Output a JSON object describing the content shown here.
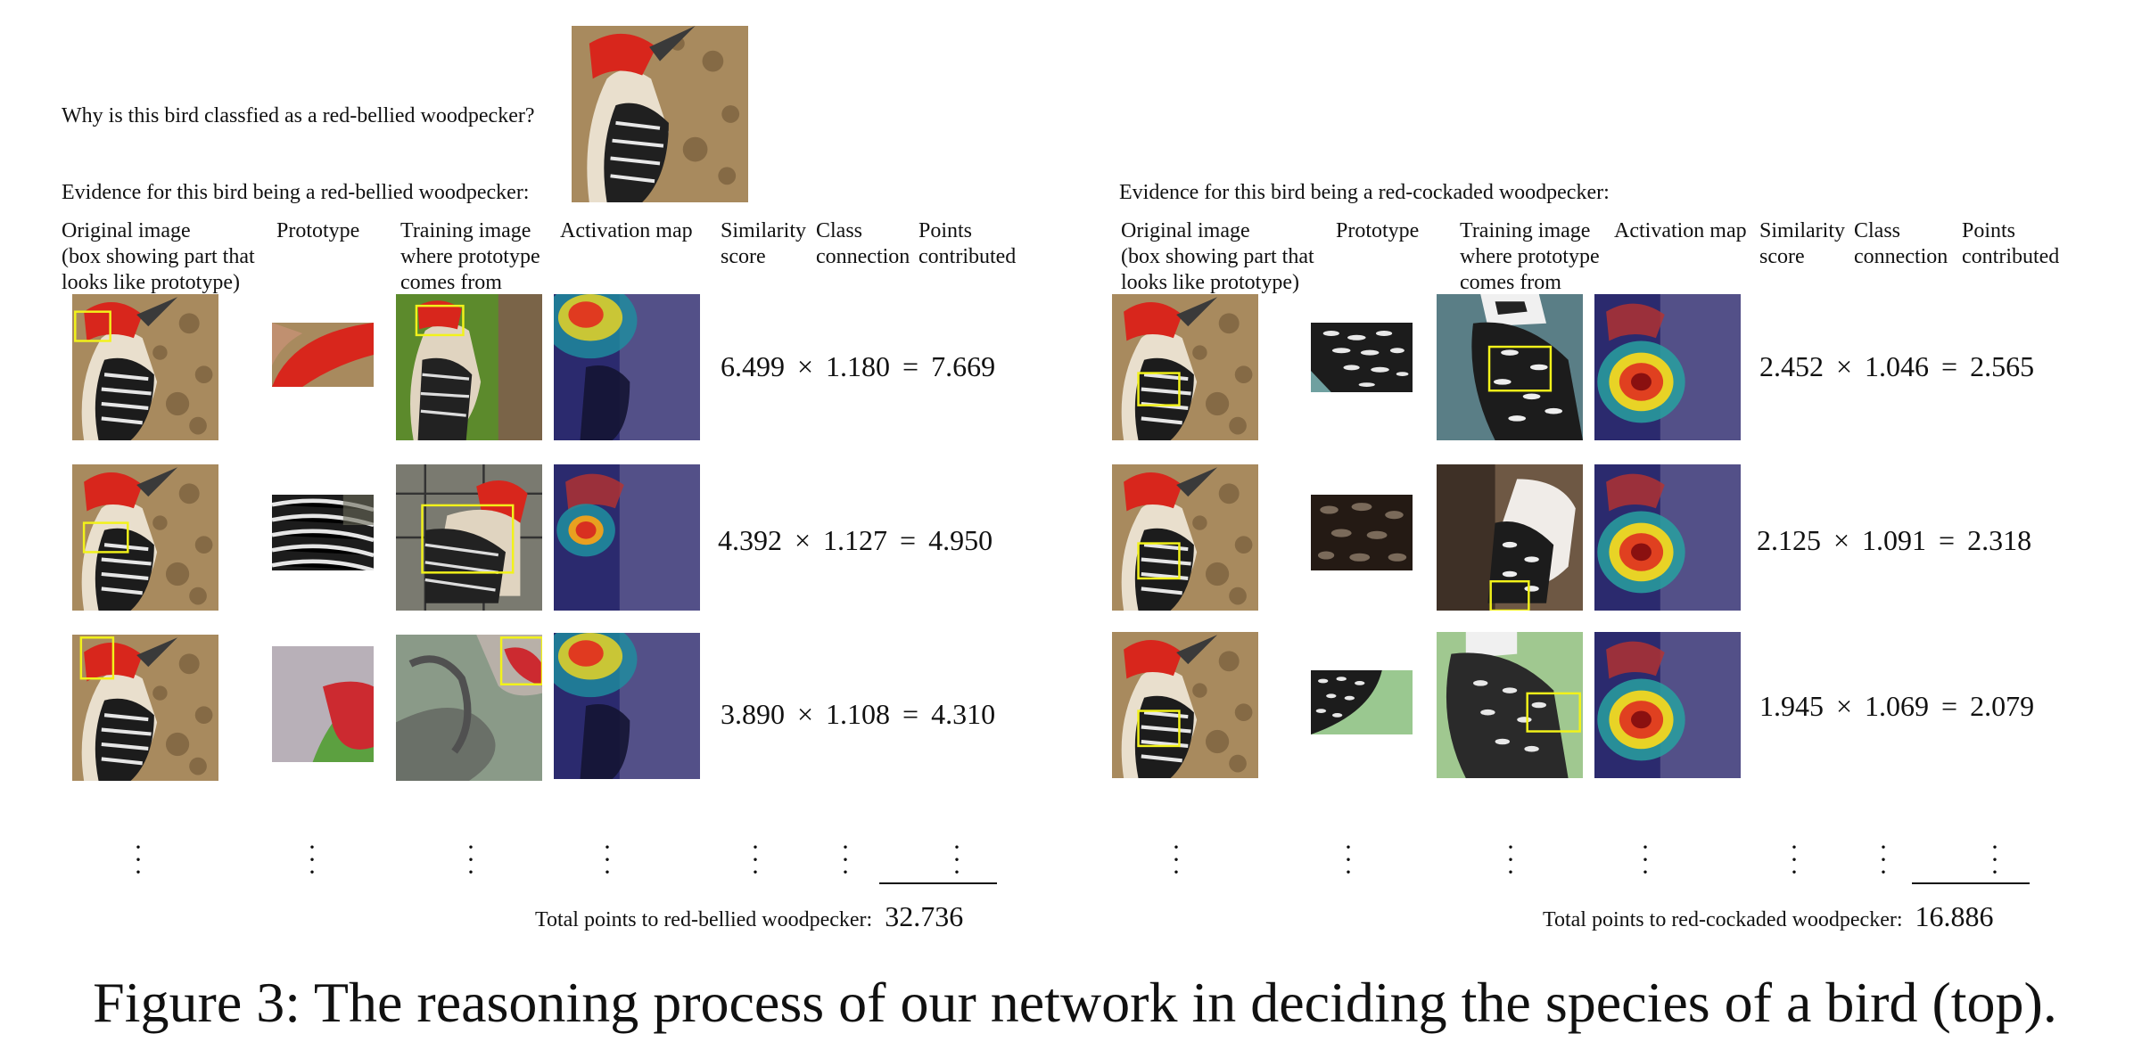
{
  "question": "Why is this bird classfied as a red-bellied woodpecker?",
  "left": {
    "evidence": "Evidence for this bird being a red-bellied woodpecker:",
    "rows": [
      {
        "similarity": "6.499",
        "connection": "1.180",
        "points": "7.669"
      },
      {
        "similarity": "4.392",
        "connection": "1.127",
        "points": "4.950"
      },
      {
        "similarity": "3.890",
        "connection": "1.108",
        "points": "4.310"
      }
    ],
    "total_label": "Total points to red-bellied woodpecker:",
    "total_value": "32.736"
  },
  "right": {
    "evidence": "Evidence for this bird being a red-cockaded woodpecker:",
    "rows": [
      {
        "similarity": "2.452",
        "connection": "1.046",
        "points": "2.565"
      },
      {
        "similarity": "2.125",
        "connection": "1.091",
        "points": "2.318"
      },
      {
        "similarity": "1.945",
        "connection": "1.069",
        "points": "2.079"
      }
    ],
    "total_label": "Total points to red-cockaded woodpecker:",
    "total_value": "16.886"
  },
  "headers": {
    "original_1": "Original image",
    "original_2": "(box showing part that",
    "original_3": "looks like prototype)",
    "prototype": "Prototype",
    "training_1": "Training image",
    "training_2": "where prototype",
    "training_3": "comes from",
    "activation": "Activation map",
    "similarity_1": "Similarity",
    "similarity_2": "score",
    "class_1": "Class",
    "class_2": "connection",
    "points_1": "Points",
    "points_2": "contributed"
  },
  "symbols": {
    "times": "×",
    "equals": "="
  },
  "caption": "Figure 3: The reasoning process of our network in deciding the species of a bird (top).",
  "colors": {
    "box": "#f2f21a",
    "red_head": "#d8261c",
    "bark": "#a08560"
  }
}
